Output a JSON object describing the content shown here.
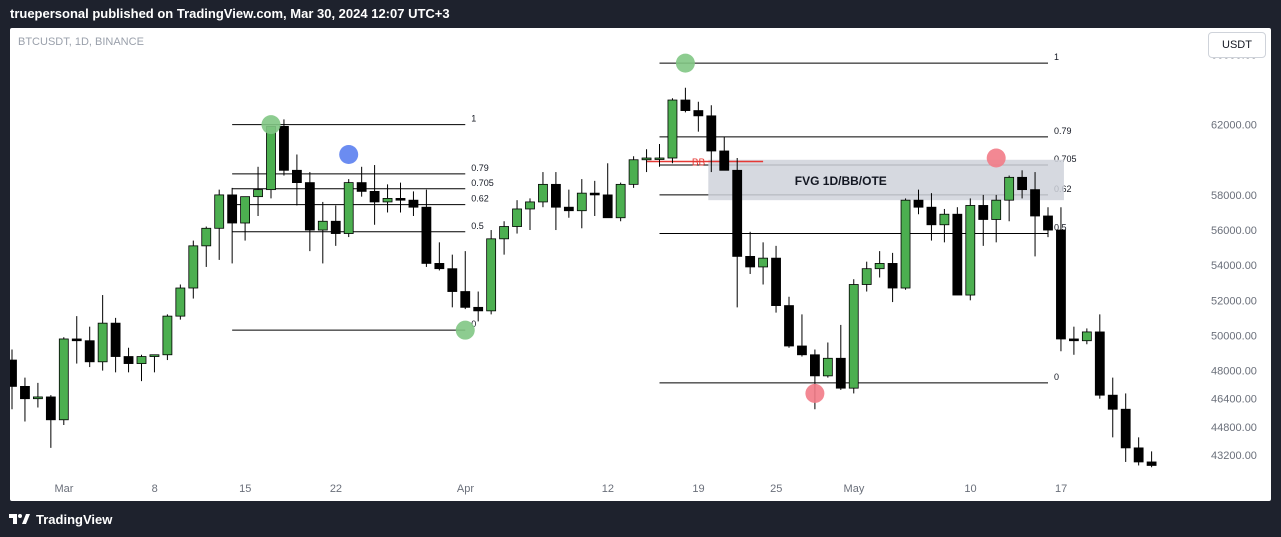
{
  "header": {
    "publisher_text": "truepersonal published on TradingView.com, Mar 30, 2024 12:07 UTC+3"
  },
  "chart_header": {
    "symbol": "BTCUSDT, 1D, BINANCE",
    "currency_button": "USDT"
  },
  "footer": {
    "brand": "TradingView",
    "logo_icon": "tradingview-logo-icon"
  },
  "colors": {
    "up_body": "#4caf50",
    "down_body": "#000000",
    "wick": "#000000",
    "level_line": "#000000",
    "bb_line": "#e53935",
    "fvg_zone": "#cfd2da",
    "marker_green": "#81c784",
    "marker_blue": "#5b7ff0",
    "marker_red": "#f27b87",
    "axis_text": "#6a6f7a",
    "header_bg": "#1e222d"
  },
  "chart_data": {
    "type": "candlestick",
    "ylim": [
      42000,
      67500
    ],
    "y_ticks": [
      "66000.00",
      "62000.00",
      "58000.00",
      "56000.00",
      "54000.00",
      "52000.00",
      "50000.00",
      "48000.00",
      "46400.00",
      "44800.00",
      "43200.00"
    ],
    "x_ticks": [
      {
        "label": "Mar",
        "index": 0
      },
      {
        "label": "8",
        "index": 7
      },
      {
        "label": "15",
        "index": 14
      },
      {
        "label": "22",
        "index": 21
      },
      {
        "label": "Apr",
        "index": 31
      },
      {
        "label": "12",
        "index": 42
      },
      {
        "label": "19",
        "index": 49
      },
      {
        "label": "25",
        "index": 55
      },
      {
        "label": "May",
        "index": 61
      },
      {
        "label": "10",
        "index": 70
      },
      {
        "label": "17",
        "index": 77
      }
    ],
    "candles": [
      [
        0,
        48600,
        49200,
        45800,
        47100
      ],
      [
        1,
        47100,
        47600,
        45100,
        46400
      ],
      [
        2,
        46400,
        47300,
        45900,
        46500
      ],
      [
        3,
        46500,
        46600,
        43600,
        45200
      ],
      [
        4,
        45200,
        49900,
        44900,
        49800
      ],
      [
        5,
        49800,
        51100,
        48400,
        49700
      ],
      [
        6,
        49700,
        50500,
        48200,
        48500
      ],
      [
        7,
        48500,
        52300,
        48000,
        50700
      ],
      [
        8,
        50700,
        51000,
        47900,
        48800
      ],
      [
        9,
        48800,
        49300,
        47900,
        48400
      ],
      [
        10,
        48400,
        48900,
        47400,
        48800
      ],
      [
        11,
        48800,
        48900,
        47900,
        48900
      ],
      [
        12,
        48900,
        51200,
        48600,
        51100
      ],
      [
        13,
        51100,
        52900,
        50900,
        52700
      ],
      [
        14,
        52700,
        55400,
        52100,
        55100
      ],
      [
        15,
        55100,
        56200,
        53900,
        56100
      ],
      [
        16,
        56100,
        58300,
        54300,
        58000
      ],
      [
        17,
        58000,
        58400,
        54100,
        56400
      ],
      [
        18,
        56400,
        57900,
        55400,
        57900
      ],
      [
        19,
        57900,
        59600,
        56800,
        58300
      ],
      [
        20,
        58300,
        61900,
        57800,
        61900
      ],
      [
        21,
        61900,
        62300,
        59100,
        59400
      ],
      [
        22,
        59400,
        60300,
        57400,
        58700
      ],
      [
        23,
        58700,
        59300,
        54800,
        56000
      ],
      [
        24,
        56000,
        57600,
        54100,
        56500
      ],
      [
        25,
        56500,
        57400,
        55100,
        55800
      ],
      [
        26,
        55800,
        58900,
        55600,
        58700
      ],
      [
        27,
        58700,
        59600,
        57900,
        58200
      ],
      [
        28,
        58200,
        59700,
        56300,
        57600
      ],
      [
        29,
        57600,
        58600,
        57000,
        57800
      ],
      [
        30,
        57800,
        58700,
        57000,
        57700
      ],
      [
        31,
        57700,
        58200,
        56800,
        57300
      ],
      [
        32,
        57300,
        58300,
        53900,
        54100
      ],
      [
        33,
        54100,
        55300,
        53700,
        53800
      ],
      [
        34,
        53800,
        54600,
        51600,
        52500
      ],
      [
        35,
        52500,
        54800,
        51500,
        51600
      ],
      [
        36,
        51600,
        52500,
        50800,
        51400
      ],
      [
        37,
        51400,
        56000,
        51200,
        55500
      ],
      [
        38,
        55500,
        56500,
        54600,
        56200
      ],
      [
        39,
        56200,
        57700,
        55800,
        57200
      ],
      [
        40,
        57200,
        57800,
        56000,
        57600
      ],
      [
        41,
        57600,
        59300,
        57300,
        58600
      ],
      [
        42,
        58600,
        59300,
        56000,
        57300
      ],
      [
        43,
        57300,
        58300,
        56700,
        57100
      ],
      [
        44,
        57100,
        58900,
        56100,
        58100
      ],
      [
        45,
        58100,
        58800,
        56800,
        58000
      ],
      [
        46,
        58000,
        59800,
        56700,
        56700
      ],
      [
        47,
        56700,
        58700,
        56500,
        58600
      ],
      [
        48,
        58600,
        60200,
        58400,
        60000
      ],
      [
        49,
        60000,
        60600,
        59300,
        60100
      ],
      [
        50,
        60100,
        60900,
        59600,
        60100
      ],
      [
        51,
        60100,
        63500,
        59800,
        63400
      ],
      [
        52,
        63400,
        64100,
        62700,
        62800
      ],
      [
        53,
        62800,
        63300,
        61600,
        62500
      ],
      [
        54,
        62500,
        63100,
        59300,
        60500
      ],
      [
        55,
        60500,
        61300,
        59600,
        59400
      ],
      [
        56,
        59400,
        60100,
        51600,
        54500
      ],
      [
        57,
        54500,
        55900,
        53500,
        53900
      ],
      [
        58,
        53900,
        55300,
        52900,
        54400
      ],
      [
        59,
        54400,
        55100,
        51300,
        51700
      ],
      [
        60,
        51700,
        52200,
        49300,
        49400
      ],
      [
        61,
        49400,
        51200,
        48800,
        48900
      ],
      [
        62,
        48900,
        49200,
        45800,
        47700
      ],
      [
        63,
        47700,
        49600,
        47600,
        48700
      ],
      [
        64,
        48700,
        50600,
        46900,
        47000
      ],
      [
        65,
        47000,
        53200,
        46700,
        52900
      ],
      [
        66,
        52900,
        54200,
        52500,
        53800
      ],
      [
        67,
        53800,
        54800,
        53300,
        54100
      ],
      [
        68,
        54100,
        54700,
        51900,
        52700
      ],
      [
        69,
        52700,
        57800,
        52600,
        57700
      ],
      [
        70,
        57700,
        58300,
        56900,
        57300
      ],
      [
        71,
        57300,
        58100,
        55400,
        56300
      ],
      [
        72,
        56300,
        57200,
        55300,
        56900
      ],
      [
        73,
        56900,
        57300,
        52300,
        52300
      ],
      [
        74,
        52300,
        57800,
        52000,
        57400
      ],
      [
        75,
        57400,
        58000,
        55100,
        56600
      ],
      [
        76,
        56600,
        58000,
        55300,
        57700
      ],
      [
        77,
        57700,
        59100,
        56500,
        59000
      ],
      [
        78,
        59000,
        59400,
        57800,
        58300
      ],
      [
        79,
        58300,
        59300,
        54500,
        56800
      ],
      [
        80,
        56800,
        57300,
        55600,
        56000
      ],
      [
        81,
        56000,
        57300,
        49100,
        49800
      ],
      [
        82,
        49800,
        50500,
        48900,
        49700
      ],
      [
        83,
        49700,
        50400,
        49500,
        50200
      ],
      [
        84,
        50200,
        51200,
        46400,
        46600
      ],
      [
        85,
        46600,
        47600,
        44200,
        45800
      ],
      [
        86,
        45800,
        46700,
        42800,
        43600
      ],
      [
        87,
        43600,
        44200,
        42600,
        42800
      ],
      [
        88,
        42800,
        43400,
        42500,
        42600
      ]
    ],
    "fib_left": {
      "levels": [
        {
          "label": "1",
          "price": 62000
        },
        {
          "label": "0.79",
          "price": 59200
        },
        {
          "label": "0.705",
          "price": 58350
        },
        {
          "label": "0.62",
          "price": 57450
        },
        {
          "label": "0.5",
          "price": 55900
        },
        {
          "label": "0",
          "price": 50300
        }
      ]
    },
    "fib_right": {
      "levels": [
        {
          "label": "1",
          "price": 65500
        },
        {
          "label": "0.79",
          "price": 61300
        },
        {
          "label": "0.705",
          "price": 59700
        },
        {
          "label": "0.62",
          "price": 58000
        },
        {
          "label": "0.5",
          "price": 55800
        },
        {
          "label": "0",
          "price": 47300
        }
      ]
    },
    "fvg_zone": {
      "label": "FVG 1D/BB/OTE",
      "from": 57700,
      "to": 60000
    },
    "bb_line": {
      "label": "BB",
      "price": 59900
    },
    "markers": [
      {
        "color": "green",
        "index": 20,
        "price": 62000
      },
      {
        "color": "blue",
        "index": 26,
        "price": 60300
      },
      {
        "color": "green",
        "index": 35,
        "price": 50300
      },
      {
        "color": "green",
        "index": 52,
        "price": 65500
      },
      {
        "color": "red",
        "index": 62,
        "price": 46700
      },
      {
        "color": "red",
        "index": 76,
        "price": 60100
      }
    ]
  }
}
